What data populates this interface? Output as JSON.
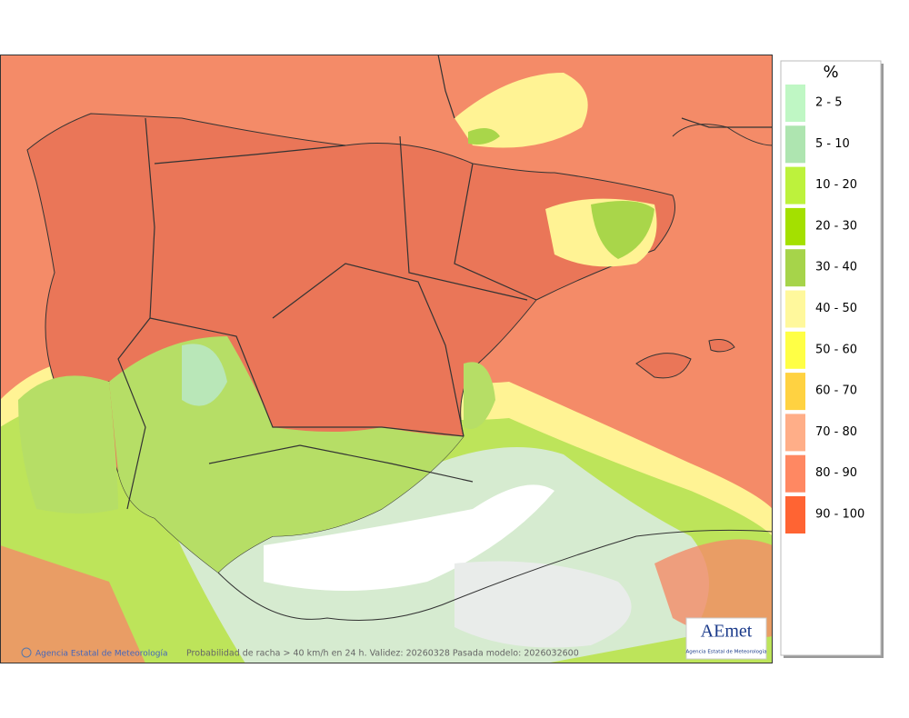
{
  "legend": {
    "title": "%",
    "items": [
      {
        "label": "2 - 5",
        "color": "#bff7c4"
      },
      {
        "label": "5 - 10",
        "color": "#aee5b0"
      },
      {
        "label": "10 - 20",
        "color": "#bdf23c"
      },
      {
        "label": "20 - 30",
        "color": "#a4e000"
      },
      {
        "label": "30 - 40",
        "color": "#a6d44a"
      },
      {
        "label": "40 - 50",
        "color": "#fff89c"
      },
      {
        "label": "50 - 60",
        "color": "#ffff45"
      },
      {
        "label": "60 - 70",
        "color": "#ffd241"
      },
      {
        "label": "70 - 80",
        "color": "#ffae88"
      },
      {
        "label": "80 - 90",
        "color": "#ff8862"
      },
      {
        "label": "90 - 100",
        "color": "#ff6433"
      }
    ]
  },
  "footer": {
    "copyright": "Agencia Estatal de Meteorología",
    "caption": "Probabilidad de racha > 40 km/h en 24 h. Validez: 20260328 Pasada modelo: 2026032600"
  },
  "logo": {
    "name": "AEmet",
    "subtitle": "Agencia Estatal de Meteorología"
  }
}
